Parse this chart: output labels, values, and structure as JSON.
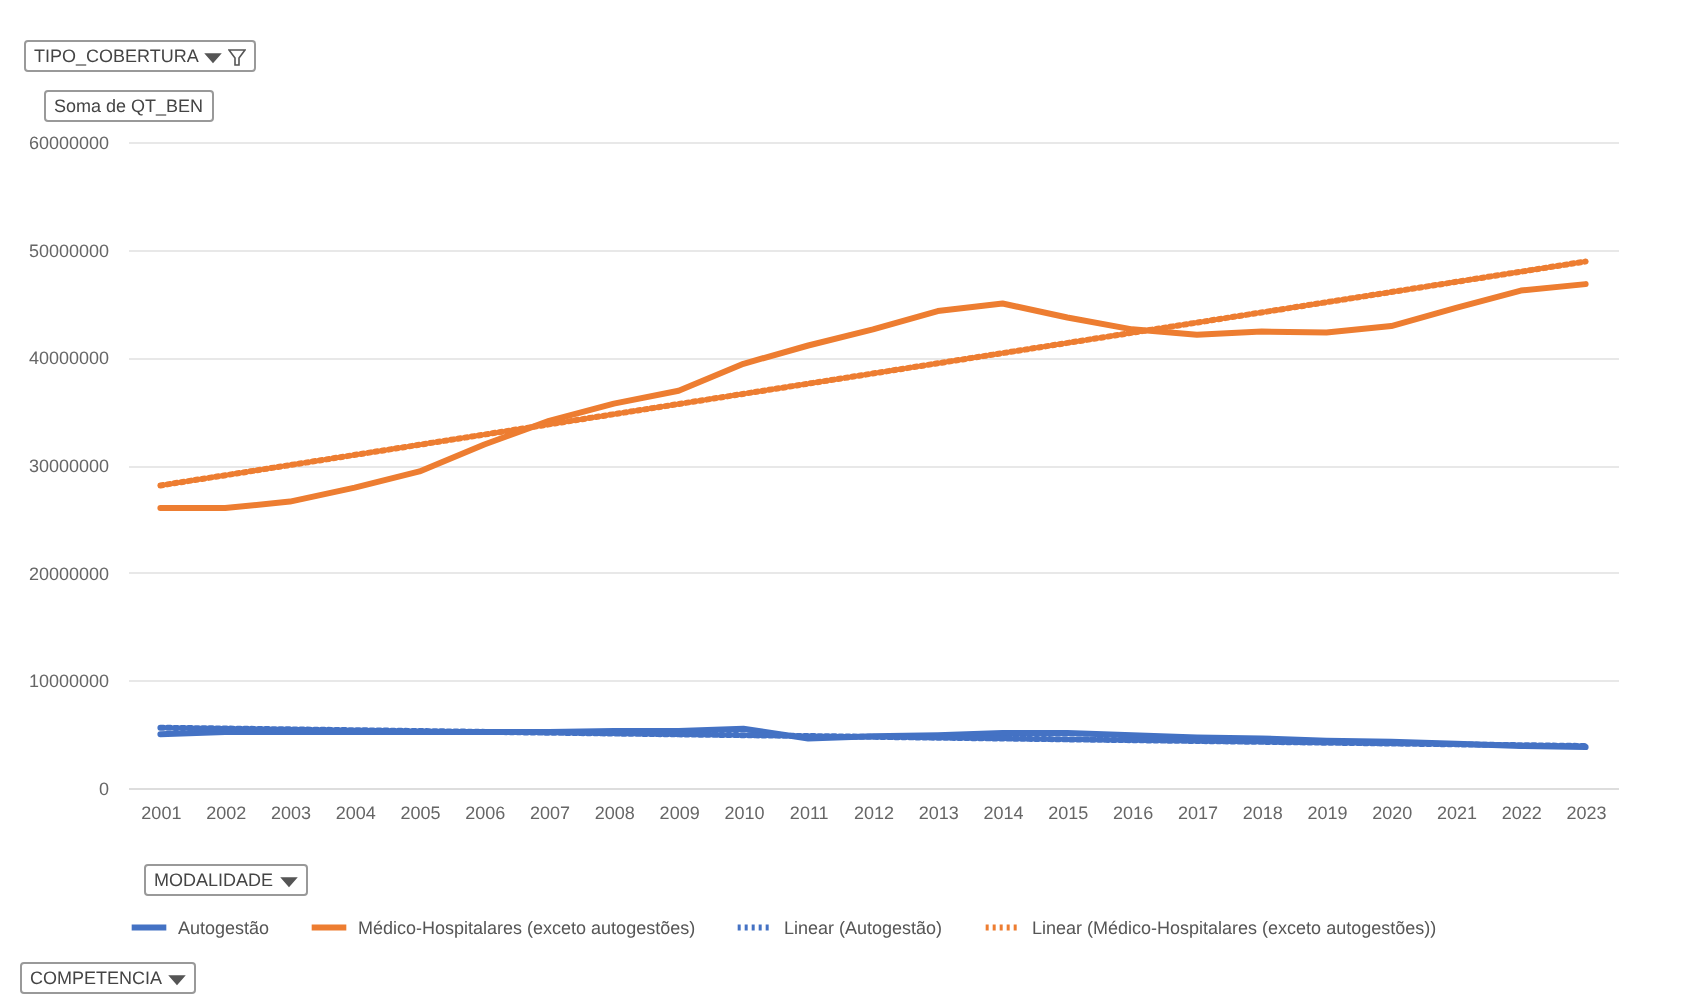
{
  "chart_data": {
    "type": "line",
    "annotations": [
      "TIPO_COBERTURA",
      "Soma de QT_BEN",
      "MODALIDADE",
      "COMPETENCIA"
    ],
    "categories": [
      "2001",
      "2002",
      "2003",
      "2004",
      "2005",
      "2006",
      "2007",
      "2008",
      "2009",
      "2010",
      "2011",
      "2012",
      "2013",
      "2014",
      "2015",
      "2016",
      "2017",
      "2018",
      "2019",
      "2020",
      "2021",
      "2022",
      "2023"
    ],
    "series": [
      {
        "name": "Autogestão",
        "color": "#4472c4",
        "line_style": "solid",
        "values": [
          5000000,
          5200000,
          5200000,
          5200000,
          5200000,
          5200000,
          5200000,
          5300000,
          5300000,
          5500000,
          4600000,
          4800000,
          4900000,
          5100000,
          5100000,
          4900000,
          4700000,
          4600000,
          4400000,
          4300000,
          4100000,
          3900000,
          3800000
        ]
      },
      {
        "name": "Médico-Hospitalares (exceto autogestões)",
        "color": "#ed7d31",
        "line_style": "solid",
        "values": [
          26000000,
          26000000,
          26600000,
          27900000,
          29400000,
          31900000,
          34100000,
          35700000,
          36900000,
          39400000,
          41100000,
          42600000,
          44300000,
          45000000,
          43700000,
          42600000,
          42100000,
          42400000,
          42300000,
          42900000,
          44600000,
          46200000,
          46800000
        ]
      },
      {
        "name": "Linear (Autogestão)",
        "color": "#4472c4",
        "line_style": "dotted",
        "values": [
          5600000,
          null,
          null,
          null,
          null,
          null,
          null,
          null,
          null,
          null,
          null,
          null,
          null,
          null,
          null,
          null,
          null,
          null,
          null,
          null,
          null,
          null,
          3900000
        ]
      },
      {
        "name": "Linear (Médico-Hospitalares (exceto autogestões))",
        "color": "#ed7d31",
        "line_style": "dotted",
        "values": [
          28100000,
          null,
          null,
          null,
          null,
          null,
          null,
          null,
          null,
          null,
          null,
          null,
          null,
          null,
          null,
          null,
          null,
          null,
          null,
          null,
          null,
          null,
          48900000
        ]
      }
    ],
    "ylim": [
      0,
      60000000
    ],
    "yticks": [
      0,
      10000000,
      20000000,
      30000000,
      40000000,
      50000000,
      60000000
    ],
    "grid": "y",
    "legend": "bottom",
    "marker": "none"
  }
}
